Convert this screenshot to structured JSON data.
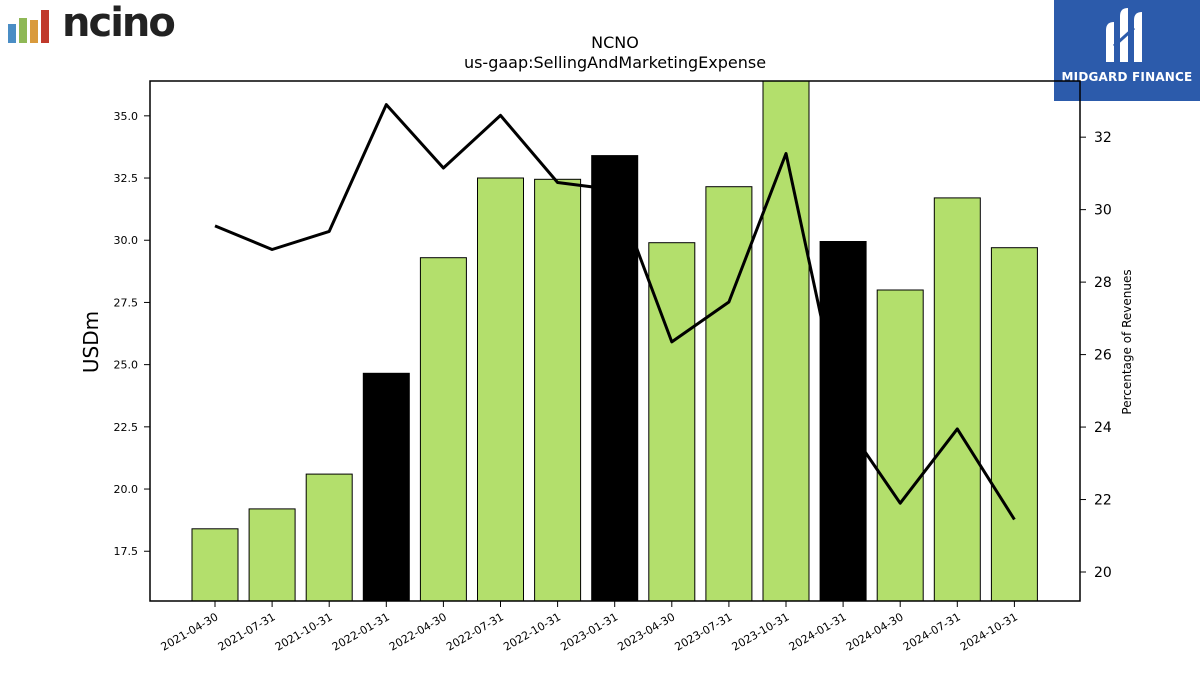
{
  "branding": {
    "left_logo_text": "ncino",
    "left_logo_colors": [
      "#4a8dc5",
      "#8fb856",
      "#d99a3c",
      "#c0392b",
      "#8e44ad"
    ],
    "right_logo_text": "MIDGARD FINANCE",
    "right_logo_bg": "#2c5bab"
  },
  "chart_data": {
    "type": "bar",
    "title": "NCNO",
    "subtitle": "us-gaap:SellingAndMarketingExpense",
    "ylabel": "USDm",
    "y2label": "Percentage of Revenues",
    "categories": [
      "2021-04-30",
      "2021-07-31",
      "2021-10-31",
      "2022-01-31",
      "2022-04-30",
      "2022-07-31",
      "2022-10-31",
      "2023-01-31",
      "2023-04-30",
      "2023-07-31",
      "2023-10-31",
      "2024-01-31",
      "2024-04-30",
      "2024-07-31",
      "2024-10-31"
    ],
    "values": [
      18.4,
      19.2,
      20.6,
      24.65,
      29.3,
      32.5,
      32.45,
      33.4,
      29.9,
      32.15,
      36.45,
      29.95,
      28.0,
      31.7,
      29.7
    ],
    "bar_colors": [
      "#b3df6c",
      "#b3df6c",
      "#b3df6c",
      "#000000",
      "#b3df6c",
      "#b3df6c",
      "#b3df6c",
      "#000000",
      "#b3df6c",
      "#b3df6c",
      "#b3df6c",
      "#000000",
      "#b3df6c",
      "#b3df6c",
      "#b3df6c"
    ],
    "ylim": [
      15.5,
      36.4
    ],
    "yticks": [
      "17.5",
      "20.0",
      "22.5",
      "25.0",
      "27.5",
      "30.0",
      "32.5",
      "35.0"
    ],
    "series": [
      {
        "type": "line",
        "axis": "right",
        "color": "#000000",
        "values": [
          29.55,
          28.9,
          29.4,
          32.9,
          31.15,
          32.6,
          30.75,
          30.55,
          26.35,
          27.45,
          31.55,
          24.2,
          21.9,
          23.95,
          21.45
        ]
      }
    ],
    "y2lim": [
      19.2,
      33.55
    ],
    "y2ticks": [
      "20",
      "22",
      "24",
      "26",
      "28",
      "30",
      "32"
    ],
    "grid": false,
    "legend": "none"
  }
}
